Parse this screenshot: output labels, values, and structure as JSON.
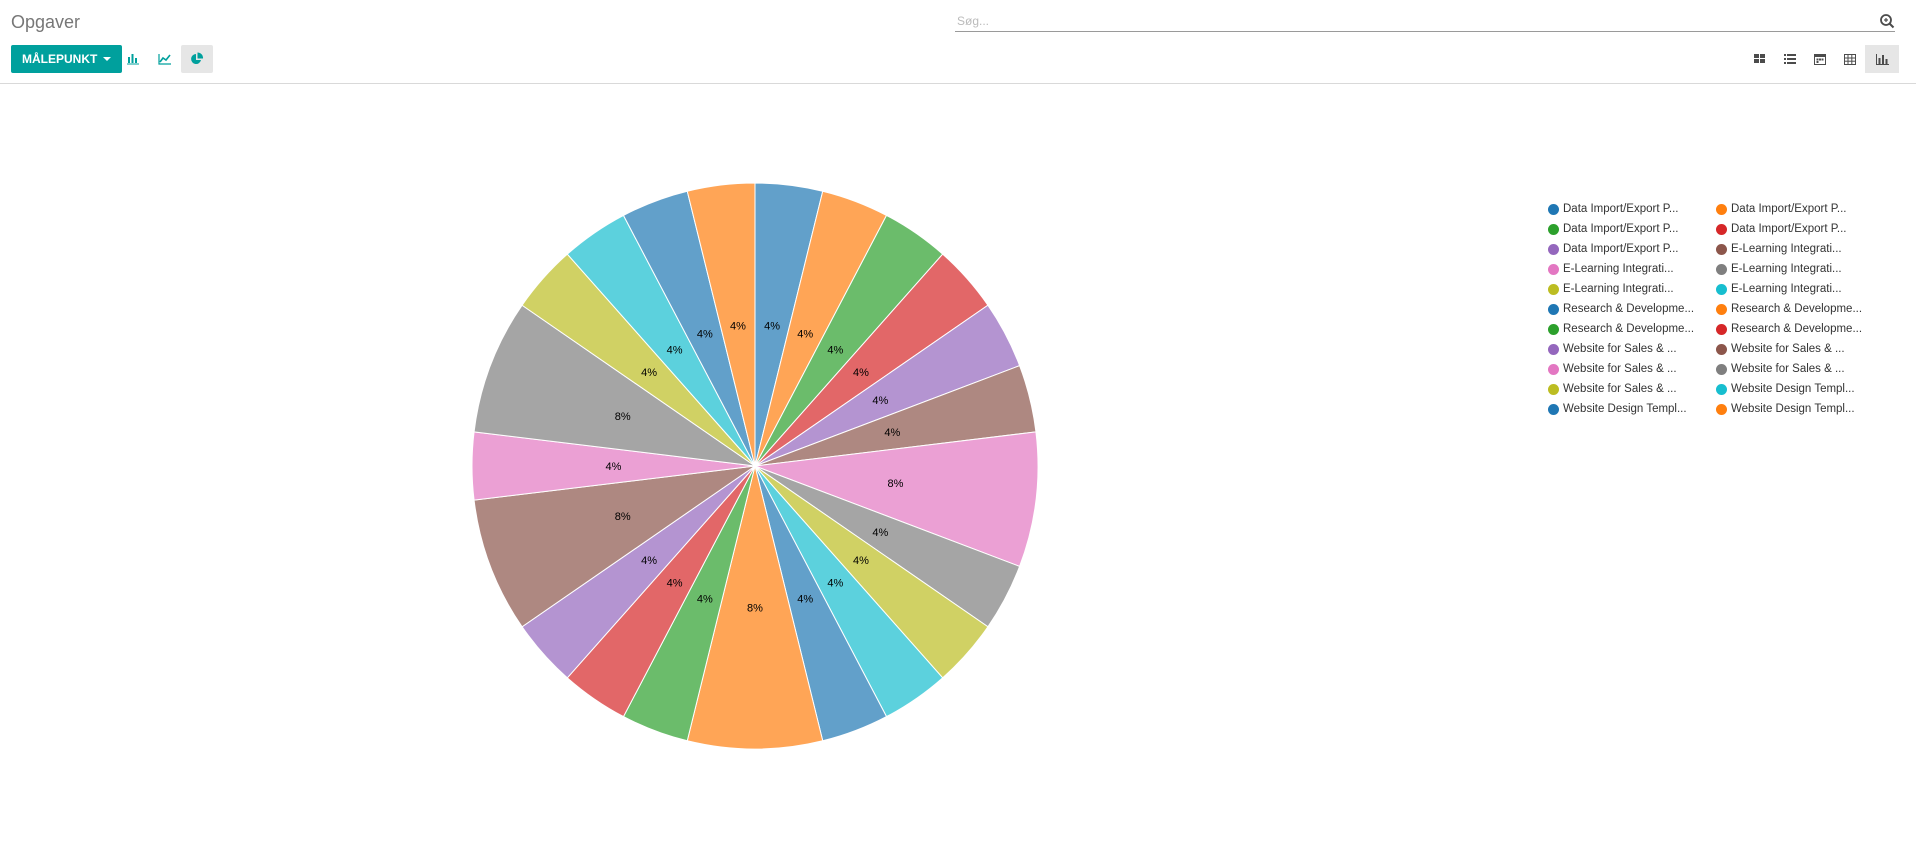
{
  "breadcrumb": "Opgaver",
  "search": {
    "placeholder": "Søg..."
  },
  "toolbar": {
    "measure_label": "MÅLEPUNKT",
    "modes": [
      {
        "name": "bar-chart-mode",
        "icon": "bar-chart-icon",
        "active": false
      },
      {
        "name": "line-chart-mode",
        "icon": "line-chart-icon",
        "active": false
      },
      {
        "name": "pie-chart-mode",
        "icon": "pie-chart-icon",
        "active": true
      }
    ],
    "views": [
      {
        "name": "kanban-view",
        "icon": "kanban-icon",
        "active": false
      },
      {
        "name": "list-view",
        "icon": "list-icon",
        "active": false
      },
      {
        "name": "calendar-view",
        "icon": "calendar-icon",
        "active": false
      },
      {
        "name": "pivot-view",
        "icon": "pivot-icon",
        "active": false
      },
      {
        "name": "graph-view",
        "icon": "graph-icon",
        "active": true
      }
    ]
  },
  "colors": {
    "accent": "#00a09d",
    "palette": [
      "#1f77b4",
      "#ff7f0e",
      "#2ca02c",
      "#d62728",
      "#9467bd",
      "#8c564b",
      "#e377c2",
      "#7f7f7f",
      "#bcbd22",
      "#17becf"
    ]
  },
  "chart_data": {
    "type": "pie",
    "legend_position": "top-right",
    "legend": [
      "Data Import/Export P...",
      "Data Import/Export P...",
      "Data Import/Export P...",
      "Data Import/Export P...",
      "Data Import/Export P...",
      "E-Learning Integrati...",
      "E-Learning Integrati...",
      "E-Learning Integrati...",
      "E-Learning Integrati...",
      "E-Learning Integrati...",
      "Research & Developme...",
      "Research & Developme...",
      "Research & Developme...",
      "Research & Developme...",
      "Website for Sales & ...",
      "Website for Sales & ...",
      "Website for Sales & ...",
      "Website for Sales & ...",
      "Website for Sales & ...",
      "Website Design Templ...",
      "Website Design Templ...",
      "Website Design Templ..."
    ],
    "slices": [
      {
        "color_index": 0,
        "percent": 4,
        "label": "4%"
      },
      {
        "color_index": 1,
        "percent": 4,
        "label": "4%"
      },
      {
        "color_index": 2,
        "percent": 4,
        "label": "4%"
      },
      {
        "color_index": 3,
        "percent": 4,
        "label": "4%"
      },
      {
        "color_index": 4,
        "percent": 4,
        "label": "4%"
      },
      {
        "color_index": 5,
        "percent": 4,
        "label": "4%"
      },
      {
        "color_index": 6,
        "percent": 8,
        "label": "8%"
      },
      {
        "color_index": 7,
        "percent": 4,
        "label": "4%"
      },
      {
        "color_index": 8,
        "percent": 4,
        "label": "4%"
      },
      {
        "color_index": 9,
        "percent": 4,
        "label": "4%"
      },
      {
        "color_index": 0,
        "percent": 4,
        "label": "4%"
      },
      {
        "color_index": 1,
        "percent": 8,
        "label": "8%"
      },
      {
        "color_index": 2,
        "percent": 4,
        "label": "4%"
      },
      {
        "color_index": 3,
        "percent": 4,
        "label": "4%"
      },
      {
        "color_index": 4,
        "percent": 4,
        "label": "4%"
      },
      {
        "color_index": 5,
        "percent": 8,
        "label": "8%"
      },
      {
        "color_index": 6,
        "percent": 4,
        "label": "4%"
      },
      {
        "color_index": 7,
        "percent": 8,
        "label": "8%"
      },
      {
        "color_index": 8,
        "percent": 4,
        "label": "4%"
      },
      {
        "color_index": 9,
        "percent": 4,
        "label": "4%"
      },
      {
        "color_index": 0,
        "percent": 4,
        "label": "4%"
      },
      {
        "color_index": 1,
        "percent": 4,
        "label": "4%"
      }
    ]
  }
}
